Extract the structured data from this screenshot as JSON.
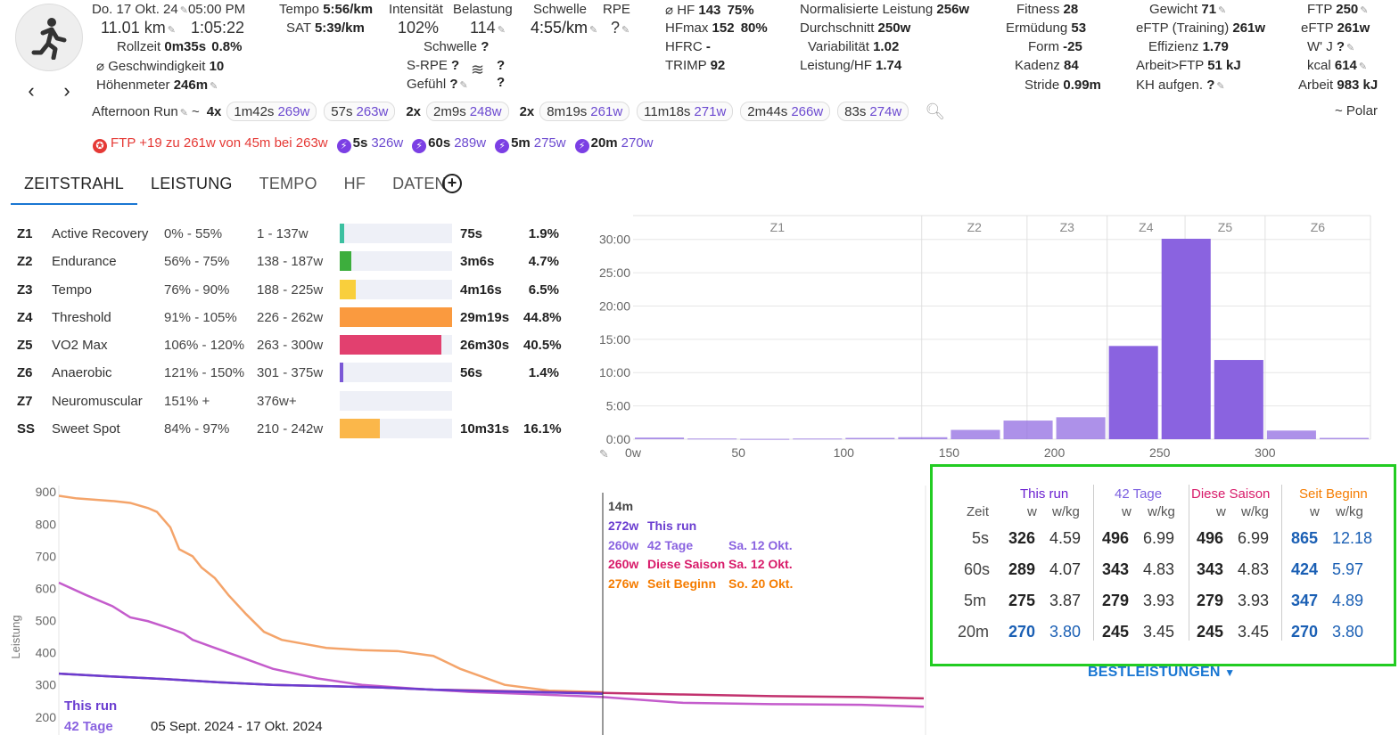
{
  "activity": {
    "date": "Do. 17 Okt. 24",
    "time": "05:00 PM",
    "distance": "11.01 km",
    "duration": "1:05:22",
    "rollzeit_label": "Rollzeit",
    "rollzeit_value": "0m35s",
    "rollzeit_pct": "0.8%",
    "speed_label": "⌀ Geschwindigkeit",
    "speed_value": "10",
    "elev_label": "Höhenmeter",
    "elev_value": "246m",
    "name": "Afternoon Run",
    "source": "~ Polar"
  },
  "stats": {
    "tempo_label": "Tempo",
    "tempo_value": "5:56/km",
    "sat_label": "SAT",
    "sat_value": "5:39/km",
    "intensity_label": "Intensität",
    "intensity_value": "102%",
    "load_label": "Belastung",
    "load_value": "114",
    "threshold_label": "Schwelle",
    "threshold_value": "4:55/km",
    "rpe_label": "RPE",
    "rpe_value": "?",
    "schwelle2_label": "Schwelle",
    "schwelle2_value": "?",
    "srpe_label": "S-RPE",
    "srpe_value": "?",
    "feel_label": "Gefühl",
    "feel_value": "?",
    "wind_q1": "?",
    "wind_q2": "?",
    "hr_label": "⌀ HF",
    "hr_value": "143",
    "hr_pct": "75%",
    "hrmax_label": "HFmax",
    "hrmax_value": "152",
    "hrmax_pct": "80%",
    "hfrc_label": "HFRC",
    "hfrc_value": "-",
    "trimp_label": "TRIMP",
    "trimp_value": "92",
    "np_label": "Normalisierte Leistung",
    "np_value": "256w",
    "avg_label": "Durchschnitt",
    "avg_value": "250w",
    "var_label": "Variabilität",
    "var_value": "1.02",
    "phr_label": "Leistung/HF",
    "phr_value": "1.74",
    "fitness_label": "Fitness",
    "fitness_value": "28",
    "fatigue_label": "Ermüdung",
    "fatigue_value": "53",
    "form_label": "Form",
    "form_value": "-25",
    "cadence_label": "Kadenz",
    "cadence_value": "84",
    "stride_label": "Stride",
    "stride_value": "0.99m",
    "weight_label": "Gewicht",
    "weight_value": "71",
    "eftp_tr_label": "eFTP (Training)",
    "eftp_tr_value": "261w",
    "eff_label": "Effizienz",
    "eff_value": "1.79",
    "work_ftp_label": "Arbeit>FTP",
    "work_ftp_value": "51 kJ",
    "carbs_label": "KH aufgen.",
    "carbs_value": "?",
    "ftp_label": "FTP",
    "ftp_value": "250",
    "eftp_label": "eFTP",
    "eftp_value": "261w",
    "wj_label": "W' J",
    "wj_value": "?",
    "kcal_label": "kcal",
    "kcal_value": "614",
    "work_label": "Arbeit",
    "work_value": "983 kJ"
  },
  "intervals": {
    "prefix": "~",
    "items": [
      {
        "rep": "4x",
        "time": "1m42s",
        "watts": "269w"
      },
      {
        "rep": "",
        "time": "57s",
        "watts": "263w"
      },
      {
        "rep": "2x",
        "time": "2m9s",
        "watts": "248w"
      },
      {
        "rep": "2x",
        "time": "8m19s",
        "watts": "261w"
      },
      {
        "rep": "",
        "time": "11m18s",
        "watts": "271w"
      },
      {
        "rep": "",
        "time": "2m44s",
        "watts": "266w"
      },
      {
        "rep": "",
        "time": "83s",
        "watts": "274w"
      }
    ]
  },
  "records": {
    "ftp_text": "FTP +19 zu 261w von 45m bei 263w",
    "items": [
      {
        "dur": "5s",
        "watts": "326w"
      },
      {
        "dur": "60s",
        "watts": "289w"
      },
      {
        "dur": "5m",
        "watts": "275w"
      },
      {
        "dur": "20m",
        "watts": "270w"
      }
    ]
  },
  "tabs": [
    "ZEITSTRAHL",
    "LEISTUNG",
    "TEMPO",
    "HF",
    "DATEN"
  ],
  "zones": [
    {
      "id": "Z1",
      "name": "Active Recovery",
      "pct": "0% - 55%",
      "watts": "1 - 137w",
      "time": "75s",
      "share": "1.9%",
      "fill": 0.043,
      "color": "#3cc0a0"
    },
    {
      "id": "Z2",
      "name": "Endurance",
      "pct": "56% - 75%",
      "watts": "138 - 187w",
      "time": "3m6s",
      "share": "4.7%",
      "fill": 0.105,
      "color": "#3dae3d"
    },
    {
      "id": "Z3",
      "name": "Tempo",
      "pct": "76% - 90%",
      "watts": "188 - 225w",
      "time": "4m16s",
      "share": "6.5%",
      "fill": 0.145,
      "color": "#f9cf3c"
    },
    {
      "id": "Z4",
      "name": "Threshold",
      "pct": "91% - 105%",
      "watts": "226 - 262w",
      "time": "29m19s",
      "share": "44.8%",
      "fill": 1.0,
      "color": "#fa9a3f"
    },
    {
      "id": "Z5",
      "name": "VO2 Max",
      "pct": "106% - 120%",
      "watts": "263 - 300w",
      "time": "26m30s",
      "share": "40.5%",
      "fill": 0.904,
      "color": "#e2406f"
    },
    {
      "id": "Z6",
      "name": "Anaerobic",
      "pct": "121% - 150%",
      "watts": "301 - 375w",
      "time": "56s",
      "share": "1.4%",
      "fill": 0.032,
      "color": "#7b58d6"
    },
    {
      "id": "Z7",
      "name": "Neuromuscular",
      "pct": "151% +",
      "watts": "376w+",
      "time": "",
      "share": "",
      "fill": 0,
      "color": "#7b58d6"
    },
    {
      "id": "SS",
      "name": "Sweet Spot",
      "pct": "84% - 97%",
      "watts": "210 - 242w",
      "time": "10m31s",
      "share": "16.1%",
      "fill": 0.359,
      "color": "#fbb74a"
    }
  ],
  "chart_data": [
    {
      "type": "bar",
      "x": [
        0,
        25,
        50,
        75,
        100,
        125,
        150,
        175,
        200,
        225,
        250,
        275,
        300,
        325
      ],
      "values": [
        0.25,
        0.1,
        0.05,
        0.1,
        0.2,
        0.3,
        1.4,
        2.8,
        3.3,
        14.0,
        30.1,
        11.9,
        1.3,
        0.2
      ],
      "xticks": [
        "0w",
        "50",
        "100",
        "150",
        "200",
        "250",
        "300"
      ],
      "yticks": [
        "0:00",
        "5:00",
        "10:00",
        "15:00",
        "20:00",
        "25:00",
        "30:00"
      ],
      "ylim": [
        0,
        30.5
      ],
      "xlim": [
        0,
        350
      ],
      "zone_labels": [
        "Z1",
        "Z2",
        "Z3",
        "Z4",
        "Z5",
        "Z6"
      ],
      "zone_boundaries": [
        137,
        187,
        225,
        262,
        300
      ],
      "color": "#8a63e0"
    },
    {
      "type": "line",
      "ylabel": "Leistung",
      "yticks": [
        "200",
        "300",
        "400",
        "500",
        "600",
        "700",
        "800",
        "900"
      ],
      "ylim": [
        180,
        920
      ],
      "x_range_label": "05 Sept. 2024 - 17 Okt. 2024",
      "series": [
        {
          "name": "Seit Beginn",
          "color": "#f4a46a",
          "points": [
            [
              0,
              888
            ],
            [
              20,
              880
            ],
            [
              60,
              872
            ],
            [
              80,
              866
            ],
            [
              100,
              850
            ],
            [
              110,
              838
            ],
            [
              125,
              790
            ],
            [
              135,
              722
            ],
            [
              150,
              700
            ],
            [
              160,
              665
            ],
            [
              175,
              632
            ],
            [
              190,
              580
            ],
            [
              210,
              520
            ],
            [
              230,
              465
            ],
            [
              250,
              440
            ],
            [
              270,
              430
            ],
            [
              300,
              415
            ],
            [
              340,
              408
            ],
            [
              380,
              405
            ],
            [
              420,
              390
            ],
            [
              450,
              350
            ],
            [
              500,
              300
            ],
            [
              550,
              282
            ],
            [
              610,
              277
            ]
          ]
        },
        {
          "name": "42 Tage",
          "color": "#c45ccc",
          "points": [
            [
              0,
              618
            ],
            [
              30,
              580
            ],
            [
              60,
              545
            ],
            [
              80,
              510
            ],
            [
              100,
              498
            ],
            [
              120,
              480
            ],
            [
              140,
              460
            ],
            [
              150,
              440
            ],
            [
              170,
              420
            ],
            [
              200,
              390
            ],
            [
              240,
              350
            ],
            [
              290,
              320
            ],
            [
              340,
              300
            ],
            [
              400,
              288
            ],
            [
              460,
              278
            ],
            [
              520,
              272
            ],
            [
              610,
              262
            ],
            [
              700,
              244
            ],
            [
              800,
              240
            ],
            [
              900,
              238
            ],
            [
              970,
              232
            ]
          ]
        },
        {
          "name": "Diese Saison",
          "color": "#c2326e",
          "points": [
            [
              0,
              335
            ],
            [
              60,
              326
            ],
            [
              120,
              318
            ],
            [
              180,
              308
            ],
            [
              240,
              300
            ],
            [
              300,
              296
            ],
            [
              360,
              292
            ],
            [
              420,
              285
            ],
            [
              480,
              282
            ],
            [
              540,
              278
            ],
            [
              610,
              275
            ],
            [
              700,
              270
            ],
            [
              800,
              265
            ],
            [
              900,
              262
            ],
            [
              970,
              258
            ]
          ]
        },
        {
          "name": "This run",
          "color": "#6a3dd0",
          "points": [
            [
              0,
              335
            ],
            [
              60,
              326
            ],
            [
              120,
              318
            ],
            [
              180,
              308
            ],
            [
              240,
              300
            ],
            [
              300,
              296
            ],
            [
              360,
              292
            ],
            [
              420,
              285
            ],
            [
              480,
              280
            ],
            [
              540,
              277
            ],
            [
              610,
              272
            ]
          ]
        }
      ]
    }
  ],
  "hover": {
    "time": "14m",
    "rows": [
      {
        "w": "272w",
        "label": "This run",
        "date": "",
        "color": "#6a3dd0"
      },
      {
        "w": "260w",
        "label": "42 Tage",
        "date": "Sa. 12 Okt.",
        "color": "#8a63e0"
      },
      {
        "w": "260w",
        "label": "Diese Saison",
        "date": "Sa. 12 Okt.",
        "color": "#d81b6a"
      },
      {
        "w": "276w",
        "label": "Seit Beginn",
        "date": "So. 20 Okt.",
        "color": "#f57c00"
      }
    ]
  },
  "legend": {
    "this_run": "This run",
    "days42": "42 Tage"
  },
  "best": {
    "zeit": "Zeit",
    "w": "w",
    "wkg": "w/kg",
    "groups": [
      {
        "title": "This run",
        "color": "#6a1fd0"
      },
      {
        "title": "42 Tage",
        "color": "#7b5fe0"
      },
      {
        "title": "Diese Saison",
        "color": "#d81b6a"
      },
      {
        "title": "Seit Beginn",
        "color": "#f57c00"
      }
    ],
    "rows": [
      {
        "dur": "5s",
        "vals": [
          "326",
          "4.59",
          "496",
          "6.99",
          "496",
          "6.99",
          "865",
          "12.18"
        ]
      },
      {
        "dur": "60s",
        "vals": [
          "289",
          "4.07",
          "343",
          "4.83",
          "343",
          "4.83",
          "424",
          "5.97"
        ]
      },
      {
        "dur": "5m",
        "vals": [
          "275",
          "3.87",
          "279",
          "3.93",
          "279",
          "3.93",
          "347",
          "4.89"
        ]
      },
      {
        "dur": "20m",
        "vals": [
          "270",
          "3.80",
          "245",
          "3.45",
          "245",
          "3.45",
          "270",
          "3.80"
        ]
      }
    ],
    "link": "BESTLEISTUNGEN"
  }
}
